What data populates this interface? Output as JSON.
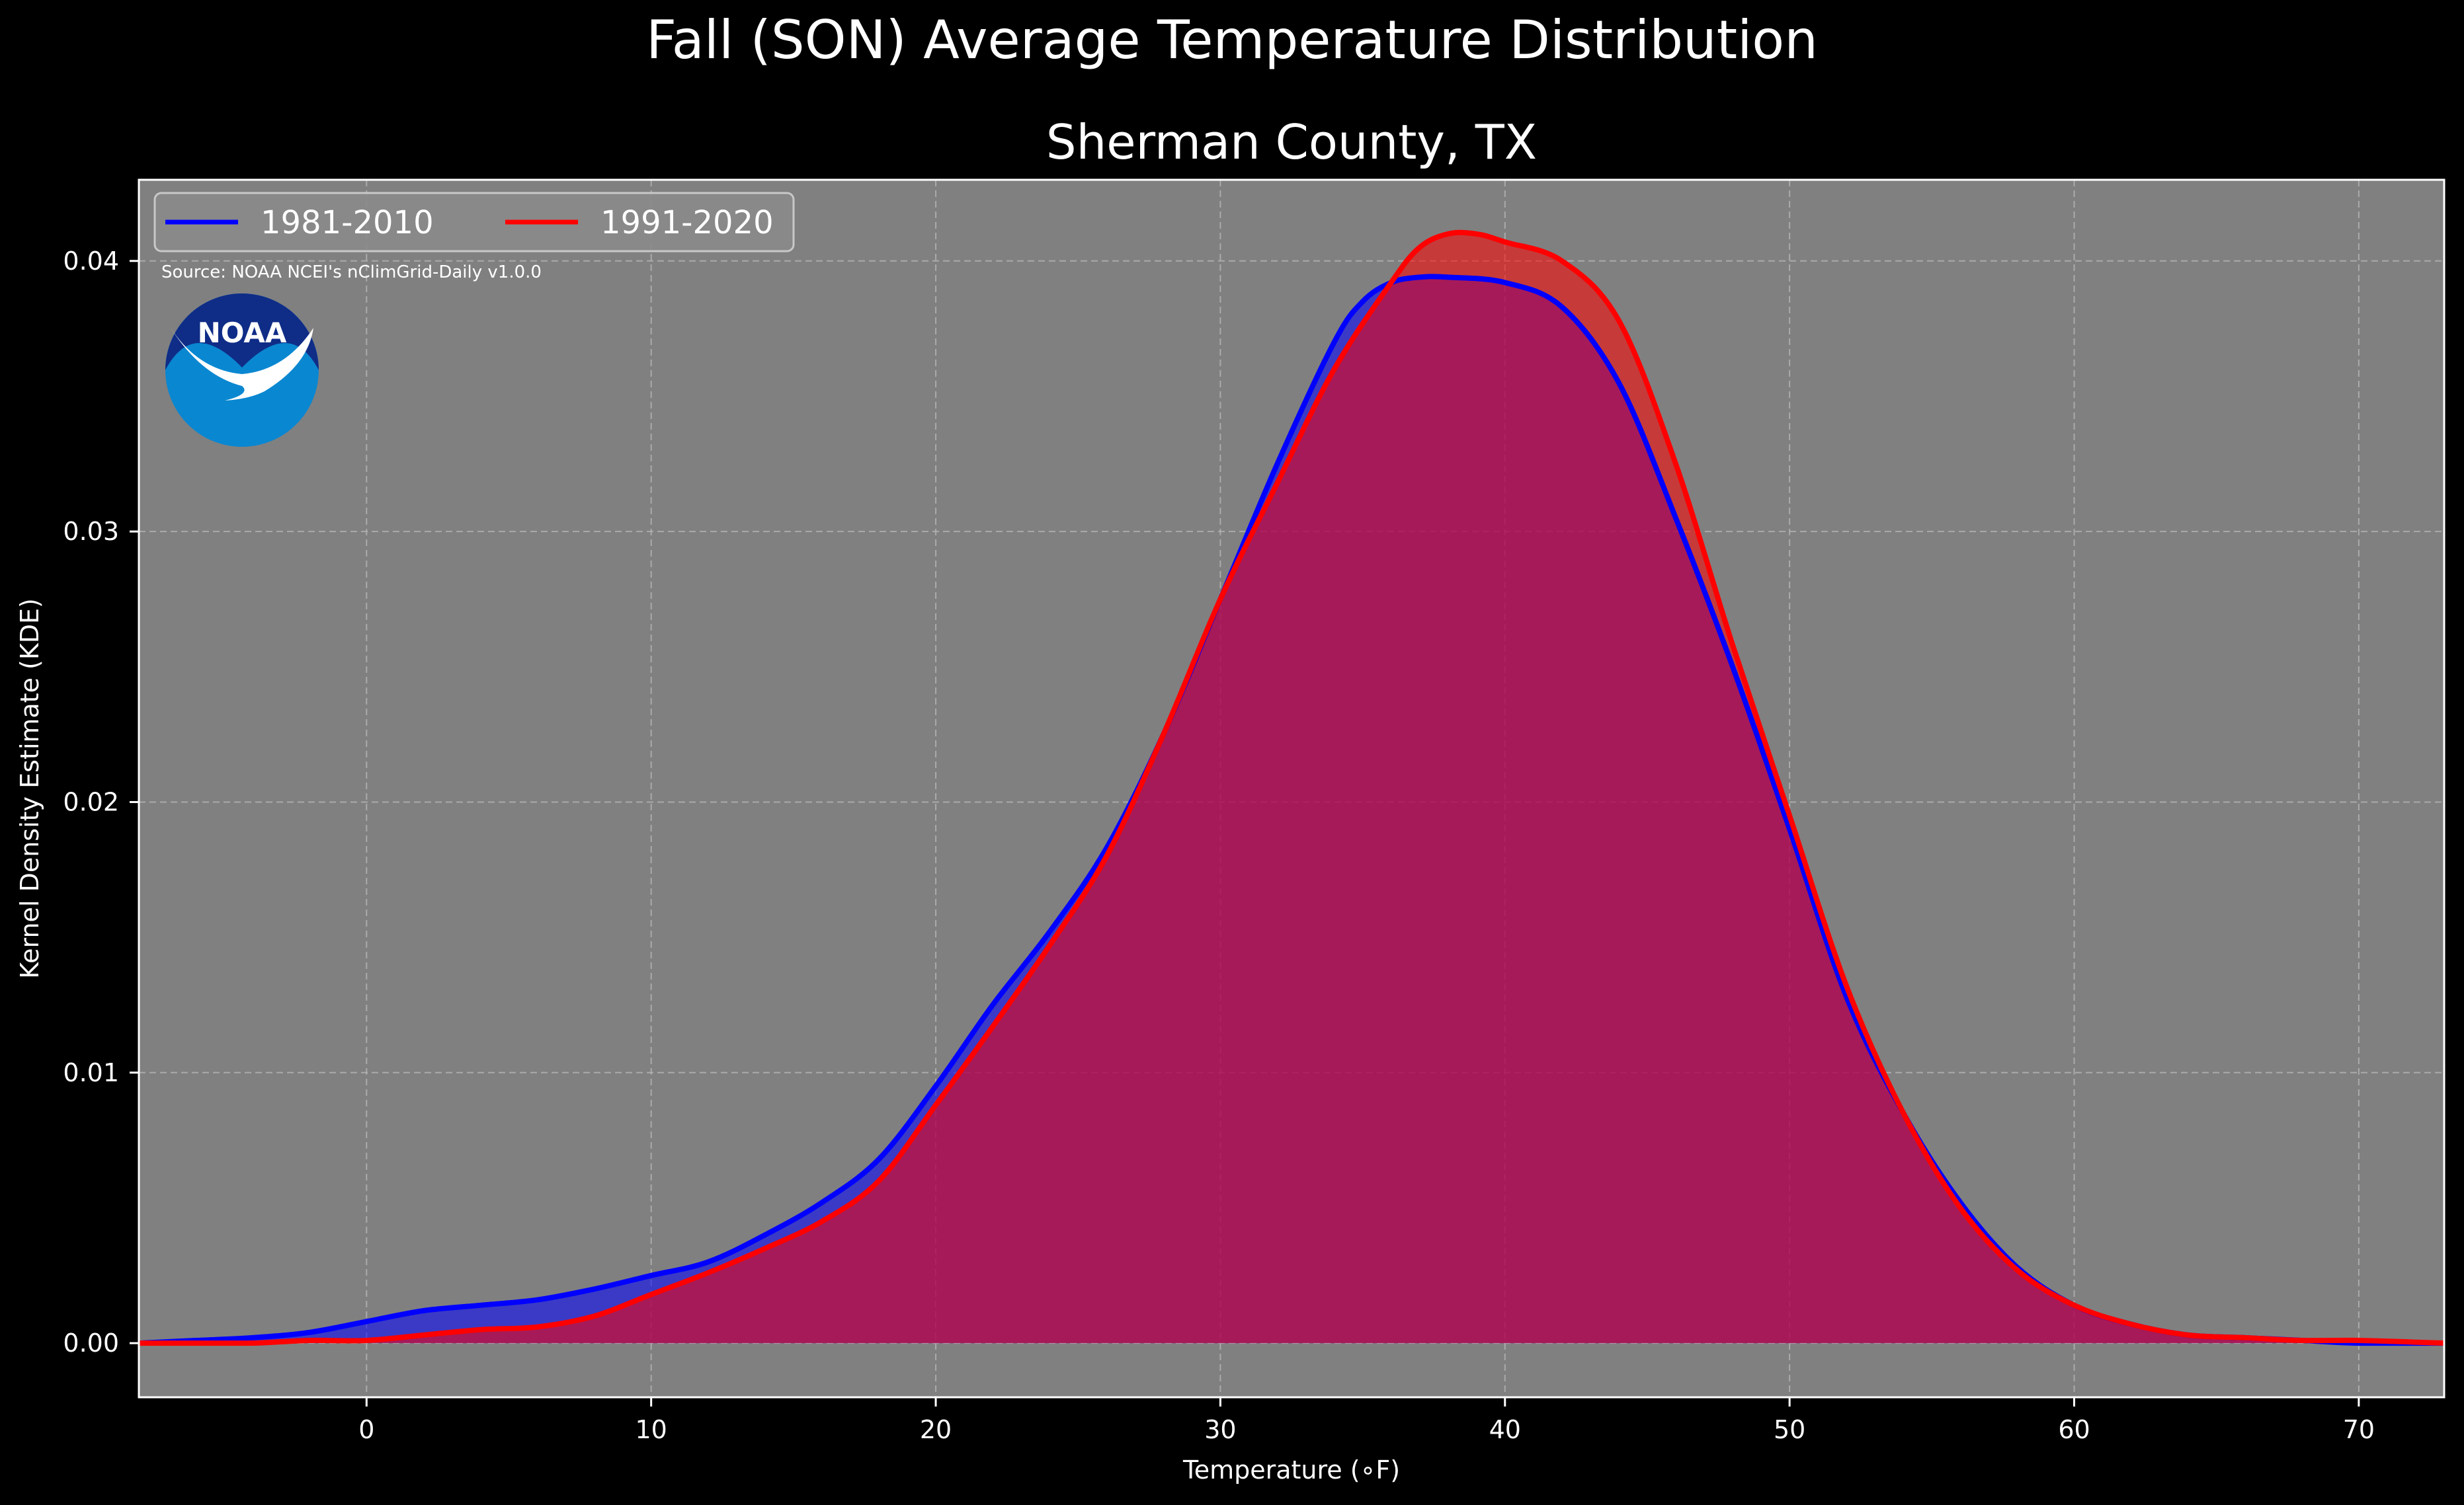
{
  "chart_data": {
    "type": "area",
    "title": "Fall (SON) Average Temperature Distribution",
    "subtitle": "Sherman County, TX",
    "xlabel": "Temperature (∘F)",
    "ylabel": "Kernel Density Estimate (KDE)",
    "xlim": [
      -8,
      73
    ],
    "ylim": [
      -0.002,
      0.043
    ],
    "xticks": [
      0,
      10,
      20,
      30,
      40,
      50,
      60,
      70
    ],
    "yticks": [
      0.0,
      0.01,
      0.02,
      0.03,
      0.04
    ],
    "xtick_labels": [
      "0",
      "10",
      "20",
      "30",
      "40",
      "50",
      "60",
      "70"
    ],
    "ytick_labels": [
      "0.00",
      "0.01",
      "0.02",
      "0.03",
      "0.04"
    ],
    "grid": true,
    "legend_position": "top-left",
    "background_color": "#808080",
    "figure_background": "#000000",
    "source_note": "Source: NOAA NCEI's nClimGrid-Daily v1.0.0",
    "logo_text": "NOAA",
    "series": [
      {
        "name": "1981-2010",
        "color": "#0000ff",
        "fill_color": "#0000ff",
        "x": [
          -8,
          -6,
          -4,
          -2,
          0,
          2,
          4,
          6,
          8,
          10,
          12,
          14,
          16,
          18,
          20,
          22,
          24,
          26,
          28,
          30,
          32,
          34,
          35,
          36,
          37,
          38,
          40,
          42,
          44,
          46,
          48,
          50,
          52,
          54,
          56,
          58,
          60,
          62,
          64,
          66,
          68,
          70,
          73
        ],
        "y": [
          0.0,
          0.0001,
          0.0002,
          0.0004,
          0.0008,
          0.0012,
          0.0014,
          0.0016,
          0.002,
          0.0025,
          0.003,
          0.004,
          0.0052,
          0.0068,
          0.0095,
          0.0125,
          0.0152,
          0.0183,
          0.0225,
          0.0275,
          0.0325,
          0.037,
          0.0385,
          0.0392,
          0.0394,
          0.0394,
          0.0392,
          0.0383,
          0.0355,
          0.0305,
          0.025,
          0.019,
          0.0128,
          0.0085,
          0.0052,
          0.0028,
          0.0014,
          0.0007,
          0.0003,
          0.0002,
          0.0001,
          0.0,
          0.0
        ]
      },
      {
        "name": "1991-2020",
        "color": "#ff0000",
        "fill_color": "#ff0000",
        "x": [
          -8,
          -6,
          -4,
          -2,
          0,
          2,
          4,
          6,
          8,
          10,
          12,
          14,
          16,
          18,
          20,
          22,
          24,
          26,
          28,
          30,
          32,
          34,
          36,
          37,
          38,
          39,
          40,
          42,
          44,
          46,
          48,
          50,
          52,
          54,
          56,
          58,
          60,
          62,
          64,
          66,
          68,
          70,
          73
        ],
        "y": [
          0.0,
          0.0,
          0.0,
          0.0001,
          0.0001,
          0.0003,
          0.0005,
          0.0006,
          0.001,
          0.0018,
          0.0026,
          0.0035,
          0.0045,
          0.006,
          0.0088,
          0.0117,
          0.0147,
          0.018,
          0.0225,
          0.0275,
          0.0318,
          0.036,
          0.0392,
          0.0405,
          0.041,
          0.041,
          0.0407,
          0.04,
          0.0378,
          0.0325,
          0.0258,
          0.0195,
          0.0132,
          0.0085,
          0.005,
          0.0027,
          0.0014,
          0.0007,
          0.0003,
          0.0002,
          0.0001,
          0.0001,
          0.0
        ]
      }
    ]
  }
}
